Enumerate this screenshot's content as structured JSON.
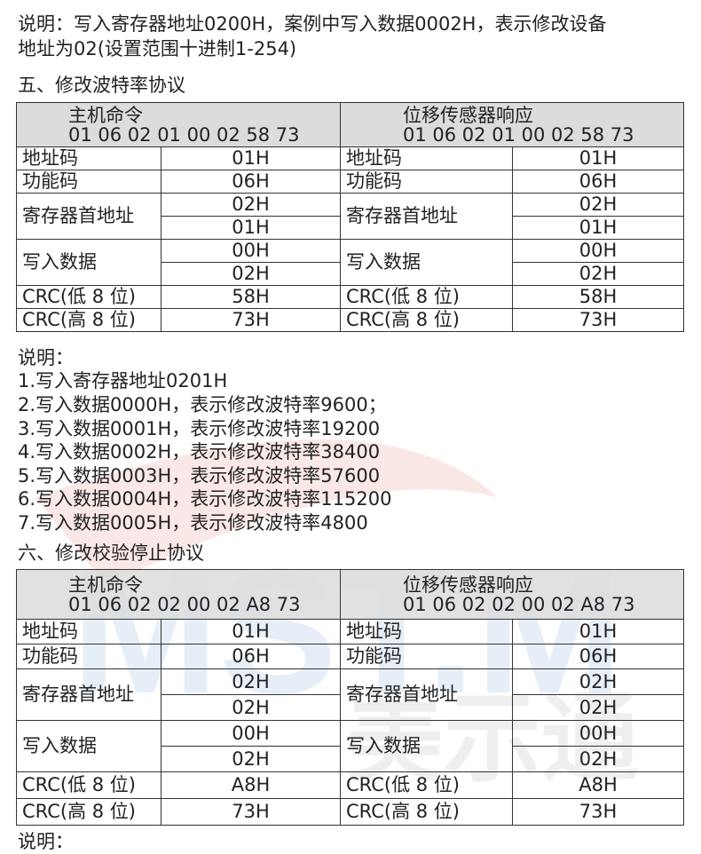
{
  "intro": {
    "line1": "说明：写入寄存器地址0200H，案例中写入数据0002H，表示修改设备",
    "line2": "地址为02(设置范围十进制1-254)"
  },
  "section5": {
    "title": "五、修改波特率协议",
    "host_label": "主机命令",
    "host_frame": "01 06 02 01 00 02 58 73",
    "slave_label": "位移传感器响应",
    "slave_frame": "01 06 02 01 00 02 58 73",
    "rows": {
      "addr": "地址码",
      "func": "功能码",
      "reg": "寄存器首地址",
      "data": "写入数据",
      "crcl": "CRC(低 8 位)",
      "crch": "CRC(高 8 位)"
    },
    "host_vals": [
      "01H",
      "06H",
      "02H",
      "01H",
      "00H",
      "02H",
      "58H",
      "73H"
    ],
    "slave_vals": [
      "01H",
      "06H",
      "02H",
      "01H",
      "00H",
      "02H",
      "58H",
      "73H"
    ],
    "notes": [
      "说明：",
      "1.写入寄存器地址0201H",
      "2.写入数据0000H，表示修改波特率9600；",
      "3.写入数据0001H，表示修改波特率19200",
      "4.写入数据0002H，表示修改波特率38400",
      "5.写入数据0003H，表示修改波特率57600",
      "6.写入数据0004H，表示修改波特率115200",
      "7.写入数据0005H，表示修改波特率4800"
    ]
  },
  "section6": {
    "title": "六、修改校验停止协议",
    "host_label": "主机命令",
    "host_frame": "01 06 02 02 00 02 A8 73",
    "slave_label": "位移传感器响应",
    "slave_frame": "01 06 02 02 00 02 A8 73",
    "rows": {
      "addr": "地址码",
      "func": "功能码",
      "reg": "寄存器首地址",
      "data": "写入数据",
      "crcl": "CRC(低 8 位)",
      "crch": "CRC(高 8 位)"
    },
    "host_vals": [
      "01H",
      "06H",
      "02H",
      "02H",
      "00H",
      "02H",
      "A8H",
      "73H"
    ],
    "slave_vals": [
      "01H",
      "06H",
      "02H",
      "02H",
      "00H",
      "02H",
      "A8H",
      "73H"
    ],
    "notes": [
      "说明："
    ]
  },
  "watermark": {
    "text": "MST.M 美示通",
    "colors": {
      "blue": "#3a7fc8",
      "red": "#d9423a",
      "gray": "#b0b0b0"
    }
  }
}
